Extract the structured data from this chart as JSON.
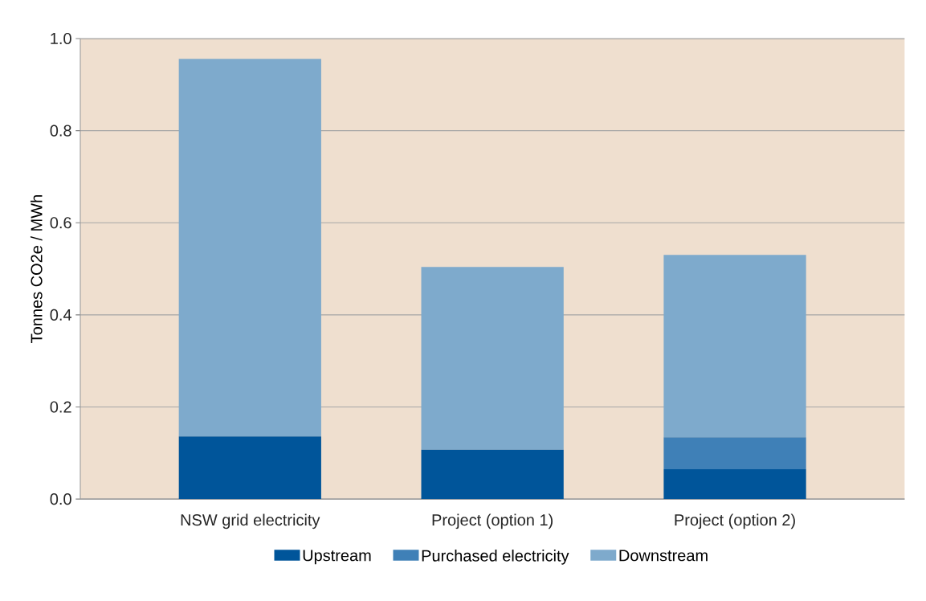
{
  "chart_data": {
    "type": "bar",
    "stacked": true,
    "ylabel": "Tonnes CO2e / MWh",
    "categories": [
      "NSW grid electricity",
      "Project (option 1)",
      "Project (option 2)"
    ],
    "series": [
      {
        "name": "Upstream",
        "color": "#00559a",
        "values": [
          0.136,
          0.107,
          0.065
        ]
      },
      {
        "name": "Purchased electricity",
        "color": "#3f80b7",
        "values": [
          0,
          0,
          0.069
        ]
      },
      {
        "name": "Downstream",
        "color": "#7eaacc",
        "values": [
          0.82,
          0.397,
          0.396
        ]
      }
    ],
    "ylim": [
      0,
      1
    ],
    "yticks": [
      {
        "value": 0,
        "label": "0.0"
      },
      {
        "value": 0.2,
        "label": "0.2"
      },
      {
        "value": 0.4,
        "label": "0.4"
      },
      {
        "value": 0.6,
        "label": "0.6"
      },
      {
        "value": 0.8,
        "label": "0.8"
      },
      {
        "value": 1,
        "label": "1.0"
      }
    ],
    "grid": "y",
    "legend": "bottom"
  }
}
